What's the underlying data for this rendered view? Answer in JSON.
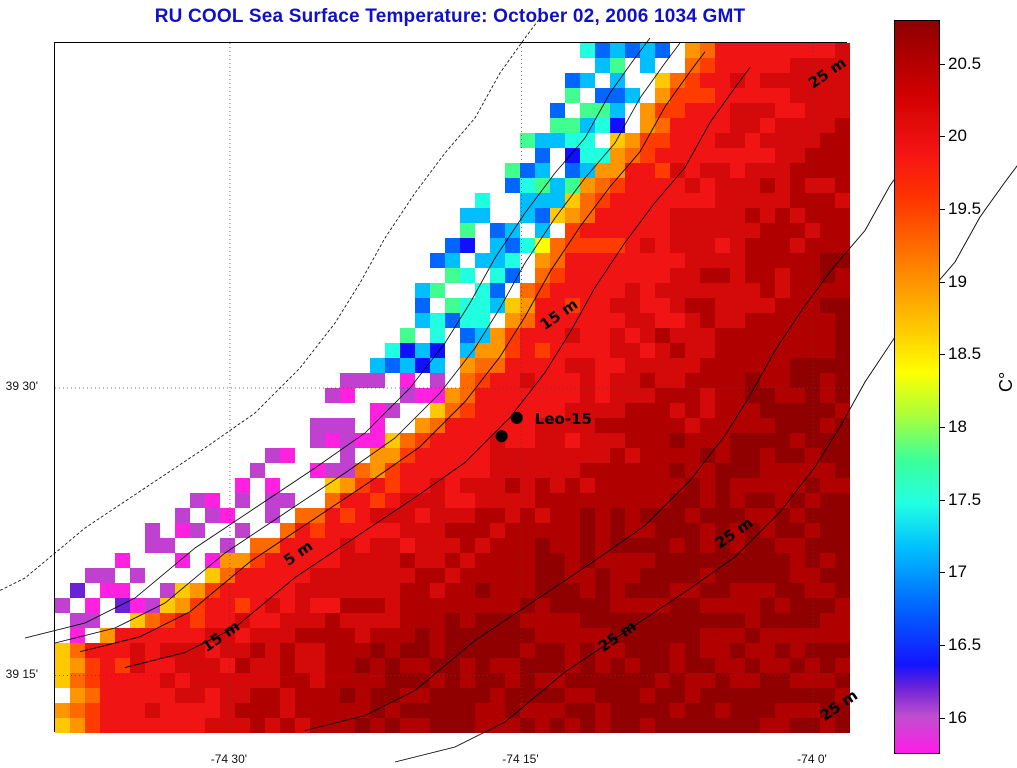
{
  "title": "RU COOL  Sea Surface Temperature:  October 02, 2006 1034 GMT",
  "map": {
    "lat_ticks": [
      {
        "label": "39 30'",
        "value": 39.5
      },
      {
        "label": "39 15'",
        "value": 39.25
      }
    ],
    "lon_ticks": [
      {
        "label": "-74 30'",
        "value": -74.5
      },
      {
        "label": "-74 15'",
        "value": -74.25
      },
      {
        "label": "-74 0'",
        "value": -74.0
      }
    ],
    "lat_range": [
      39.2,
      39.8
    ],
    "lon_range": [
      -74.65,
      -73.97
    ],
    "isobath_labels": [
      {
        "text": "5 m",
        "lat": 39.345,
        "lon": -74.45
      },
      {
        "text": "15 m",
        "lat": 39.55,
        "lon": -74.23
      },
      {
        "text": "15 m",
        "lat": 39.27,
        "lon": -74.52
      },
      {
        "text": "25 m",
        "lat": 39.36,
        "lon": -74.08
      },
      {
        "text": "25 m",
        "lat": 39.27,
        "lon": -74.18
      },
      {
        "text": "25 m",
        "lat": 39.76,
        "lon": -74.0
      },
      {
        "text": "25 m",
        "lat": 39.21,
        "lon": -73.99
      }
    ],
    "stations": [
      {
        "name": "Leo-15",
        "lat": 39.474,
        "lon": -74.254,
        "labeled": true
      },
      {
        "name": "",
        "lat": 39.458,
        "lon": -74.267,
        "labeled": false
      }
    ],
    "grid": "dotted at labeled ticks",
    "land_color": "#ffffff"
  },
  "colorbar": {
    "unit": "C°",
    "range": [
      15.75,
      20.8
    ],
    "ticks": [
      "16",
      "16.5",
      "17",
      "17.5",
      "18",
      "18.5",
      "19",
      "19.5",
      "20",
      "20.5"
    ],
    "tick_values": [
      16,
      16.5,
      17,
      17.5,
      18,
      18.5,
      19,
      19.5,
      20,
      20.5
    ]
  }
}
